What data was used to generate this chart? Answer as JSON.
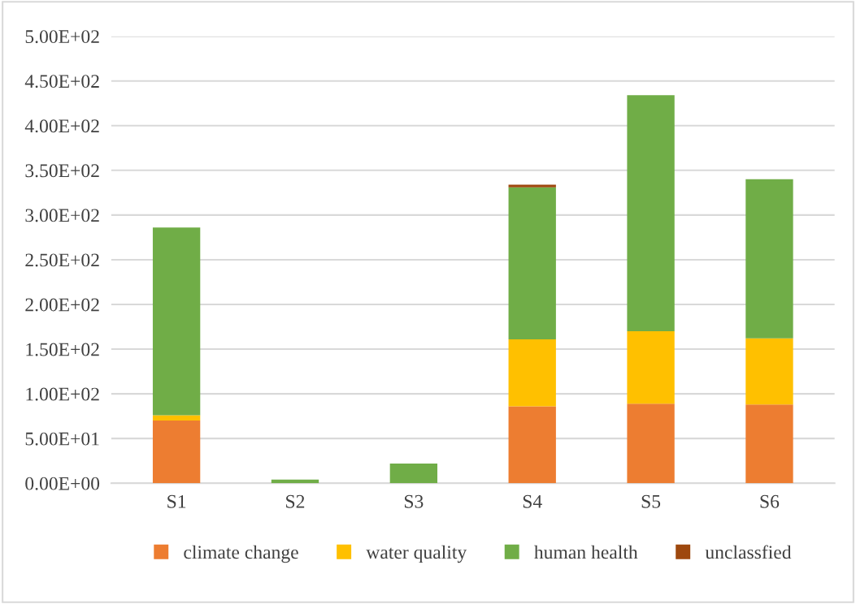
{
  "chart_data": {
    "type": "bar",
    "stacked": true,
    "categories": [
      "S1",
      "S2",
      "S3",
      "S4",
      "S5",
      "S6"
    ],
    "series": [
      {
        "name": "climate change",
        "color": "#ed7d31",
        "values": [
          70,
          0,
          0,
          86,
          89,
          88
        ]
      },
      {
        "name": "water quality",
        "color": "#ffc000",
        "values": [
          6,
          0,
          0,
          75,
          81,
          74
        ]
      },
      {
        "name": "human health",
        "color": "#70ad47",
        "values": [
          210,
          4,
          22,
          170,
          264,
          178
        ]
      },
      {
        "name": "unclassfied",
        "color": "#9e480e",
        "values": [
          0,
          0,
          0,
          3,
          0,
          0
        ]
      }
    ],
    "ylim": [
      0,
      500
    ],
    "yticks": [
      {
        "value": 0,
        "label": "0.00E+00"
      },
      {
        "value": 50,
        "label": "5.00E+01"
      },
      {
        "value": 100,
        "label": "1.00E+02"
      },
      {
        "value": 150,
        "label": "1.50E+02"
      },
      {
        "value": 200,
        "label": "2.00E+02"
      },
      {
        "value": 250,
        "label": "2.50E+02"
      },
      {
        "value": 300,
        "label": "3.00E+02"
      },
      {
        "value": 350,
        "label": "3.50E+02"
      },
      {
        "value": 400,
        "label": "4.00E+02"
      },
      {
        "value": 450,
        "label": "4.50E+02"
      },
      {
        "value": 500,
        "label": "5.00E+02"
      }
    ],
    "grid": "y",
    "legend": "bottom"
  }
}
